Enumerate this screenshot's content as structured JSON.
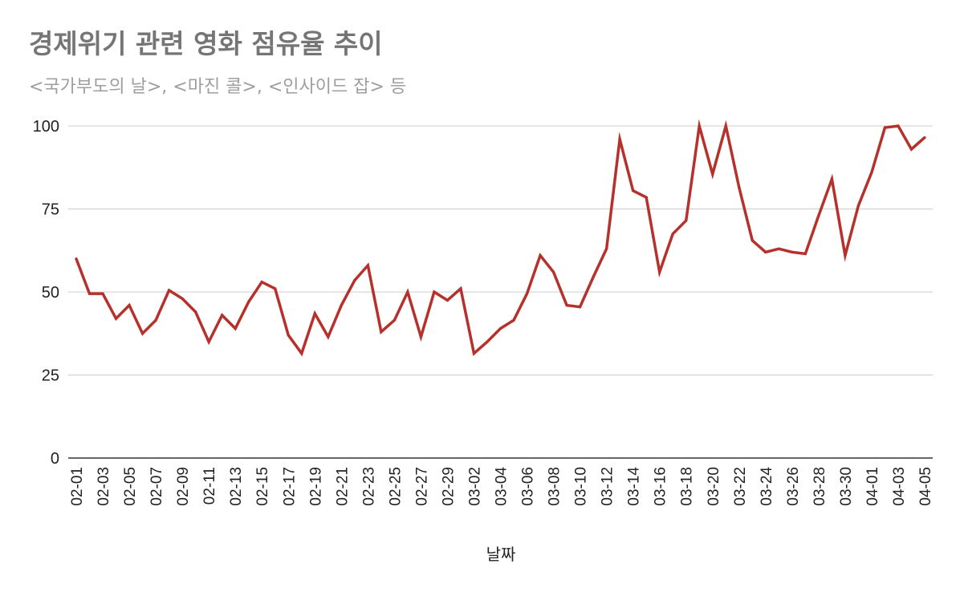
{
  "chart_data": {
    "type": "line",
    "title": "경제위기 관련 영화 점유율 추이",
    "subtitle": "<국가부도의 날>, <마진 콜>, <인사이드 잡> 등",
    "xlabel": "날짜",
    "ylabel": "",
    "ylim": [
      0,
      100
    ],
    "yticks": [
      0,
      25,
      50,
      75,
      100
    ],
    "grid": true,
    "legend": "none",
    "line_color": "#b7312c",
    "grid_color": "#cccccc",
    "x": [
      "02-01",
      "02-02",
      "02-03",
      "02-04",
      "02-05",
      "02-06",
      "02-07",
      "02-08",
      "02-09",
      "02-10",
      "02-11",
      "02-12",
      "02-13",
      "02-14",
      "02-15",
      "02-16",
      "02-17",
      "02-18",
      "02-19",
      "02-20",
      "02-21",
      "02-22",
      "02-23",
      "02-24",
      "02-25",
      "02-26",
      "02-27",
      "02-28",
      "02-29",
      "03-01",
      "03-02",
      "03-03",
      "03-04",
      "03-05",
      "03-06",
      "03-07",
      "03-08",
      "03-09",
      "03-10",
      "03-11",
      "03-12",
      "03-13",
      "03-14",
      "03-15",
      "03-16",
      "03-17",
      "03-18",
      "03-19",
      "03-20",
      "03-21",
      "03-22",
      "03-23",
      "03-24",
      "03-25",
      "03-26",
      "03-27",
      "03-28",
      "03-29",
      "03-30",
      "03-31",
      "04-01",
      "04-02",
      "04-03",
      "04-04",
      "04-05"
    ],
    "xticks": [
      "02-01",
      "02-03",
      "02-05",
      "02-07",
      "02-09",
      "02-11",
      "02-13",
      "02-15",
      "02-17",
      "02-19",
      "02-21",
      "02-23",
      "02-25",
      "02-27",
      "02-29",
      "03-02",
      "03-04",
      "03-06",
      "03-08",
      "03-10",
      "03-12",
      "03-14",
      "03-16",
      "03-18",
      "03-20",
      "03-22",
      "03-24",
      "03-26",
      "03-28",
      "03-30",
      "04-01",
      "04-03",
      "04-05"
    ],
    "series": [
      {
        "name": "",
        "values": [
          60,
          49.5,
          49.5,
          42,
          46,
          37.5,
          41.5,
          50.5,
          48,
          44,
          35,
          43,
          39,
          47,
          53,
          51,
          37,
          31.5,
          43.5,
          36.5,
          46,
          53.5,
          58,
          38,
          41.5,
          50,
          36.5,
          50,
          47.5,
          51,
          31.5,
          35,
          39,
          41.5,
          49.5,
          61,
          56,
          46,
          45.5,
          54.5,
          63,
          96,
          80.5,
          78.5,
          56,
          67.5,
          71.5,
          100,
          85.5,
          100,
          81.5,
          65.5,
          62,
          63,
          62,
          61.5,
          73,
          84,
          61,
          76,
          86,
          99.5,
          100,
          93,
          96.5
        ]
      }
    ]
  }
}
